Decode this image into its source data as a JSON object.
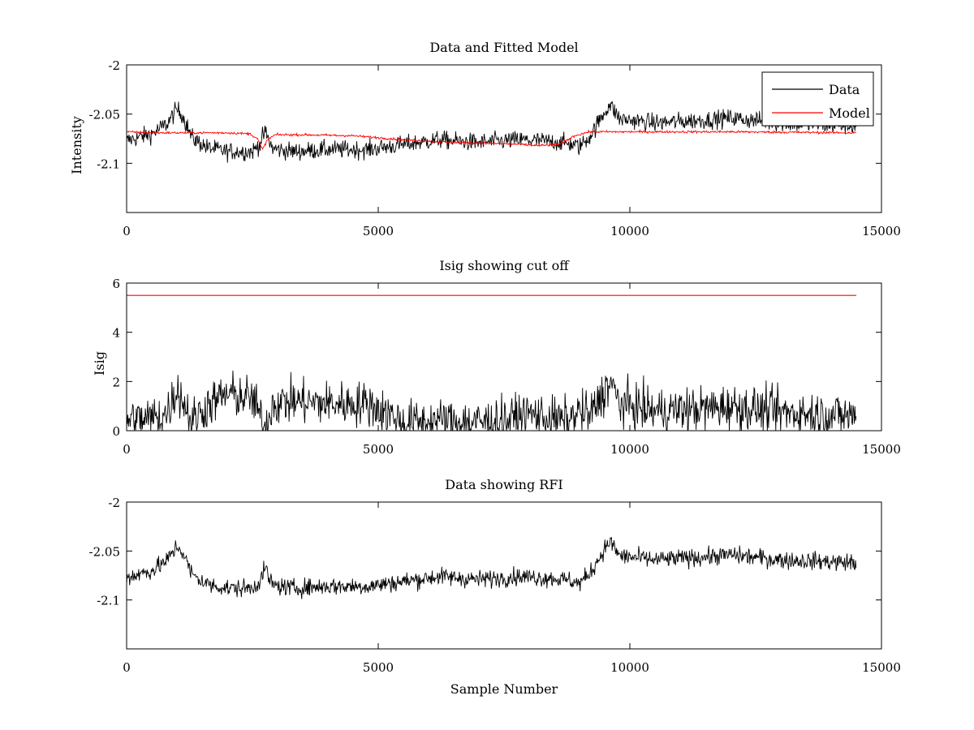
{
  "chart_data": [
    {
      "type": "line",
      "title": "Data and Fitted Model",
      "xlabel": "",
      "ylabel": "Intensity",
      "xlim": [
        0,
        15000
      ],
      "ylim": [
        -2.15,
        -2.0
      ],
      "xticks": [
        0,
        5000,
        10000,
        15000
      ],
      "yticks": [
        -2.1,
        -2.05,
        -2.0
      ],
      "ytick_labels": [
        "-2.1",
        "-2.05",
        "-2"
      ],
      "grid": false,
      "legend_position": "top-right",
      "series": [
        {
          "name": "Data",
          "color": "#000000",
          "noise": 0.0045,
          "x": [
            0,
            500,
            800,
            1000,
            1100,
            1300,
            1600,
            2000,
            2500,
            2650,
            2750,
            2900,
            3300,
            4000,
            4800,
            5500,
            6200,
            7000,
            7800,
            8500,
            8800,
            9000,
            9200,
            9500,
            9600,
            9800,
            10500,
            11500,
            12000,
            13000,
            14500
          ],
          "y": [
            -2.077,
            -2.07,
            -2.06,
            -2.045,
            -2.05,
            -2.074,
            -2.084,
            -2.088,
            -2.088,
            -2.08,
            -2.068,
            -2.085,
            -2.088,
            -2.086,
            -2.086,
            -2.081,
            -2.076,
            -2.079,
            -2.076,
            -2.078,
            -2.08,
            -2.083,
            -2.073,
            -2.048,
            -2.04,
            -2.055,
            -2.059,
            -2.056,
            -2.054,
            -2.059,
            -2.062
          ]
        },
        {
          "name": "Model",
          "color": "#ff0000",
          "noise": 0.0006,
          "x": [
            0,
            500,
            1000,
            2000,
            2450,
            2600,
            2700,
            2800,
            2950,
            3500,
            4500,
            5500,
            6500,
            7500,
            8200,
            8600,
            8900,
            9200,
            10000,
            12000,
            14500
          ],
          "y": [
            -2.068,
            -2.069,
            -2.069,
            -2.069,
            -2.07,
            -2.075,
            -2.086,
            -2.076,
            -2.071,
            -2.071,
            -2.072,
            -2.076,
            -2.079,
            -2.08,
            -2.082,
            -2.081,
            -2.072,
            -2.068,
            -2.068,
            -2.068,
            -2.069
          ]
        }
      ]
    },
    {
      "type": "line",
      "title": "Isig showing cut off",
      "xlabel": "",
      "ylabel": "Isig",
      "xlim": [
        0,
        15000
      ],
      "ylim": [
        0,
        6
      ],
      "xticks": [
        0,
        5000,
        10000,
        15000
      ],
      "yticks": [
        0,
        2,
        4,
        6
      ],
      "ytick_labels": [
        "0",
        "2",
        "4",
        "6"
      ],
      "grid": false,
      "series": [
        {
          "name": "",
          "color": "#000000",
          "noise": 0.45,
          "floor": 0,
          "x": [
            0,
            400,
            800,
            1000,
            1100,
            1300,
            1600,
            2000,
            2500,
            2650,
            2750,
            2900,
            3300,
            4000,
            4800,
            5200,
            5500,
            6200,
            7000,
            7600,
            8000,
            8500,
            8800,
            9000,
            9200,
            9500,
            9600,
            9800,
            10500,
            11500,
            12000,
            13000,
            14500
          ],
          "y": [
            0.5,
            0.45,
            0.7,
            1.7,
            1.3,
            0.4,
            1.0,
            1.5,
            1.3,
            0.6,
            0.1,
            1.1,
            1.2,
            1.1,
            1.1,
            0.7,
            0.3,
            0.4,
            0.35,
            0.45,
            0.7,
            0.45,
            0.4,
            0.8,
            0.6,
            1.6,
            2.0,
            1.1,
            0.8,
            0.9,
            1.0,
            0.75,
            0.6
          ]
        },
        {
          "name": "",
          "color": "#ff0000",
          "noise": 0,
          "x": [
            0,
            14500
          ],
          "y": [
            5.5,
            5.5
          ]
        }
      ]
    },
    {
      "type": "line",
      "title": "Data showing RFI",
      "xlabel": "Sample Number",
      "ylabel": "",
      "xlim": [
        0,
        15000
      ],
      "ylim": [
        -2.15,
        -2.0
      ],
      "xticks": [
        0,
        5000,
        10000,
        15000
      ],
      "yticks": [
        -2.1,
        -2.05,
        -2.0
      ],
      "ytick_labels": [
        "-2.1",
        "-2.05",
        "-2"
      ],
      "grid": false,
      "series": [
        {
          "name": "",
          "color": "#000000",
          "noise": 0.0045,
          "x": [
            0,
            500,
            800,
            1000,
            1100,
            1300,
            1600,
            2000,
            2500,
            2650,
            2750,
            2900,
            3300,
            4000,
            4800,
            5500,
            6200,
            7000,
            7800,
            8500,
            8800,
            9000,
            9200,
            9500,
            9600,
            9800,
            10500,
            11500,
            12000,
            13000,
            14500
          ],
          "y": [
            -2.077,
            -2.07,
            -2.06,
            -2.045,
            -2.05,
            -2.074,
            -2.084,
            -2.088,
            -2.088,
            -2.08,
            -2.068,
            -2.085,
            -2.088,
            -2.086,
            -2.086,
            -2.081,
            -2.076,
            -2.079,
            -2.076,
            -2.078,
            -2.08,
            -2.083,
            -2.073,
            -2.048,
            -2.04,
            -2.055,
            -2.059,
            -2.056,
            -2.054,
            -2.059,
            -2.062
          ]
        }
      ]
    }
  ]
}
